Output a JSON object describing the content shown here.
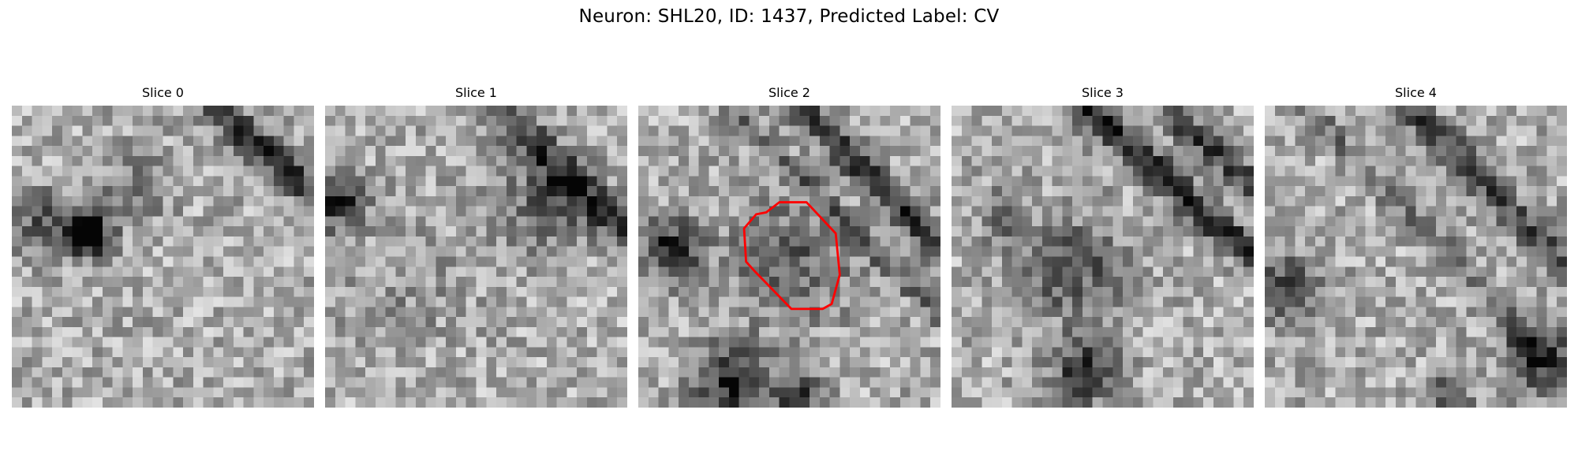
{
  "figure": {
    "title": "Neuron: SHL20, ID: 1437, Predicted Label: CV"
  },
  "panels": [
    {
      "title": "Slice 0",
      "has_contour": false
    },
    {
      "title": "Slice 1",
      "has_contour": false
    },
    {
      "title": "Slice 2",
      "has_contour": true
    },
    {
      "title": "Slice 3",
      "has_contour": false
    },
    {
      "title": "Slice 4",
      "has_contour": false
    }
  ],
  "contour": {
    "color": "#ff0000"
  },
  "colormap": "gray"
}
